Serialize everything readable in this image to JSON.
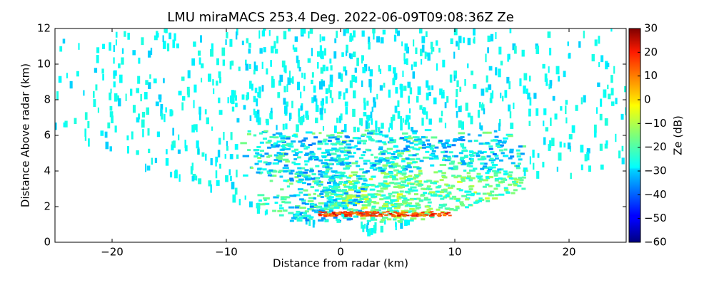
{
  "chart_data": {
    "type": "heatmap",
    "title": "LMU miraMACS 253.4 Deg. 2022-06-09T09:08:36Z  Ze",
    "x_label": "Distance from radar (km)",
    "y_label": "Distance Above radar  (km)",
    "xlim": [
      -25,
      25
    ],
    "xticks": [
      {
        "value": -20,
        "label": "−20"
      },
      {
        "value": -10,
        "label": "−10"
      },
      0,
      10,
      20
    ],
    "ylim": [
      0,
      12
    ],
    "yticks": [
      0,
      2,
      4,
      6,
      8,
      10,
      12
    ],
    "colormap": "jet",
    "colorbar": {
      "label": "Ze (dB)",
      "lim": [
        -60,
        30
      ],
      "ticks": [
        {
          "value": -60,
          "label": "−60"
        },
        {
          "value": -50,
          "label": "−50"
        },
        {
          "value": -40,
          "label": "−40"
        },
        {
          "value": -30,
          "label": "−30"
        },
        {
          "value": -20,
          "label": "−20"
        },
        {
          "value": -10,
          "label": "−10"
        },
        0,
        10,
        20,
        30
      ]
    }
  }
}
